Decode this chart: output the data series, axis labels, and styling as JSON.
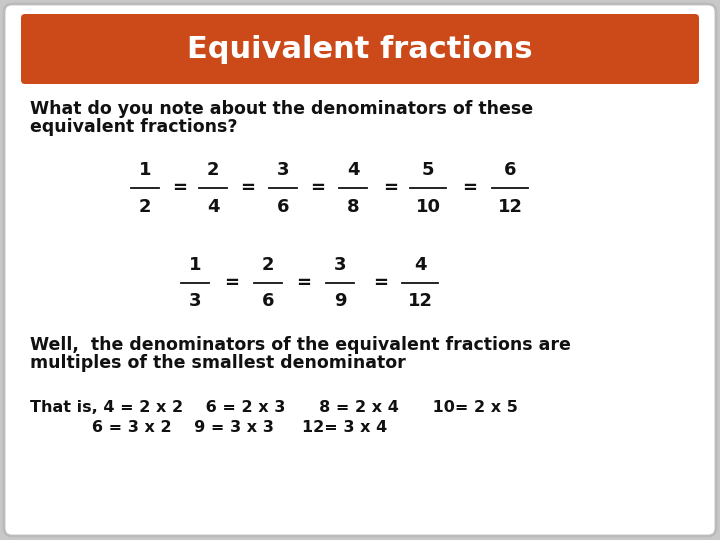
{
  "title": "Equivalent fractions",
  "title_bg_color": "#CC4A1A",
  "title_text_color": "#FFFFFF",
  "bg_color": "#FFFFFF",
  "outer_bg_color": "#C8C8C8",
  "text_color": "#111111",
  "fractions_row1": [
    [
      "1",
      "2"
    ],
    [
      "2",
      "4"
    ],
    [
      "3",
      "6"
    ],
    [
      "4",
      "8"
    ],
    [
      "5",
      "10"
    ],
    [
      "6",
      "12"
    ]
  ],
  "fractions_row2": [
    [
      "1",
      "3"
    ],
    [
      "2",
      "6"
    ],
    [
      "3",
      "9"
    ],
    [
      "4",
      "12"
    ]
  ],
  "well_text1": "Well,  the denominators of the equivalent fractions are",
  "well_text2": "multiples of the smallest denominator",
  "that_is_line1": "That is, 4 = 2 x 2    6 = 2 x 3      8 = 2 x 4      10= 2 x 5",
  "that_is_line2": "           6 = 3 x 2    9 = 3 x 3     12= 3 x 4",
  "q_line1": "What do you note about the denominators of these",
  "q_line2": "equivalent fractions?"
}
